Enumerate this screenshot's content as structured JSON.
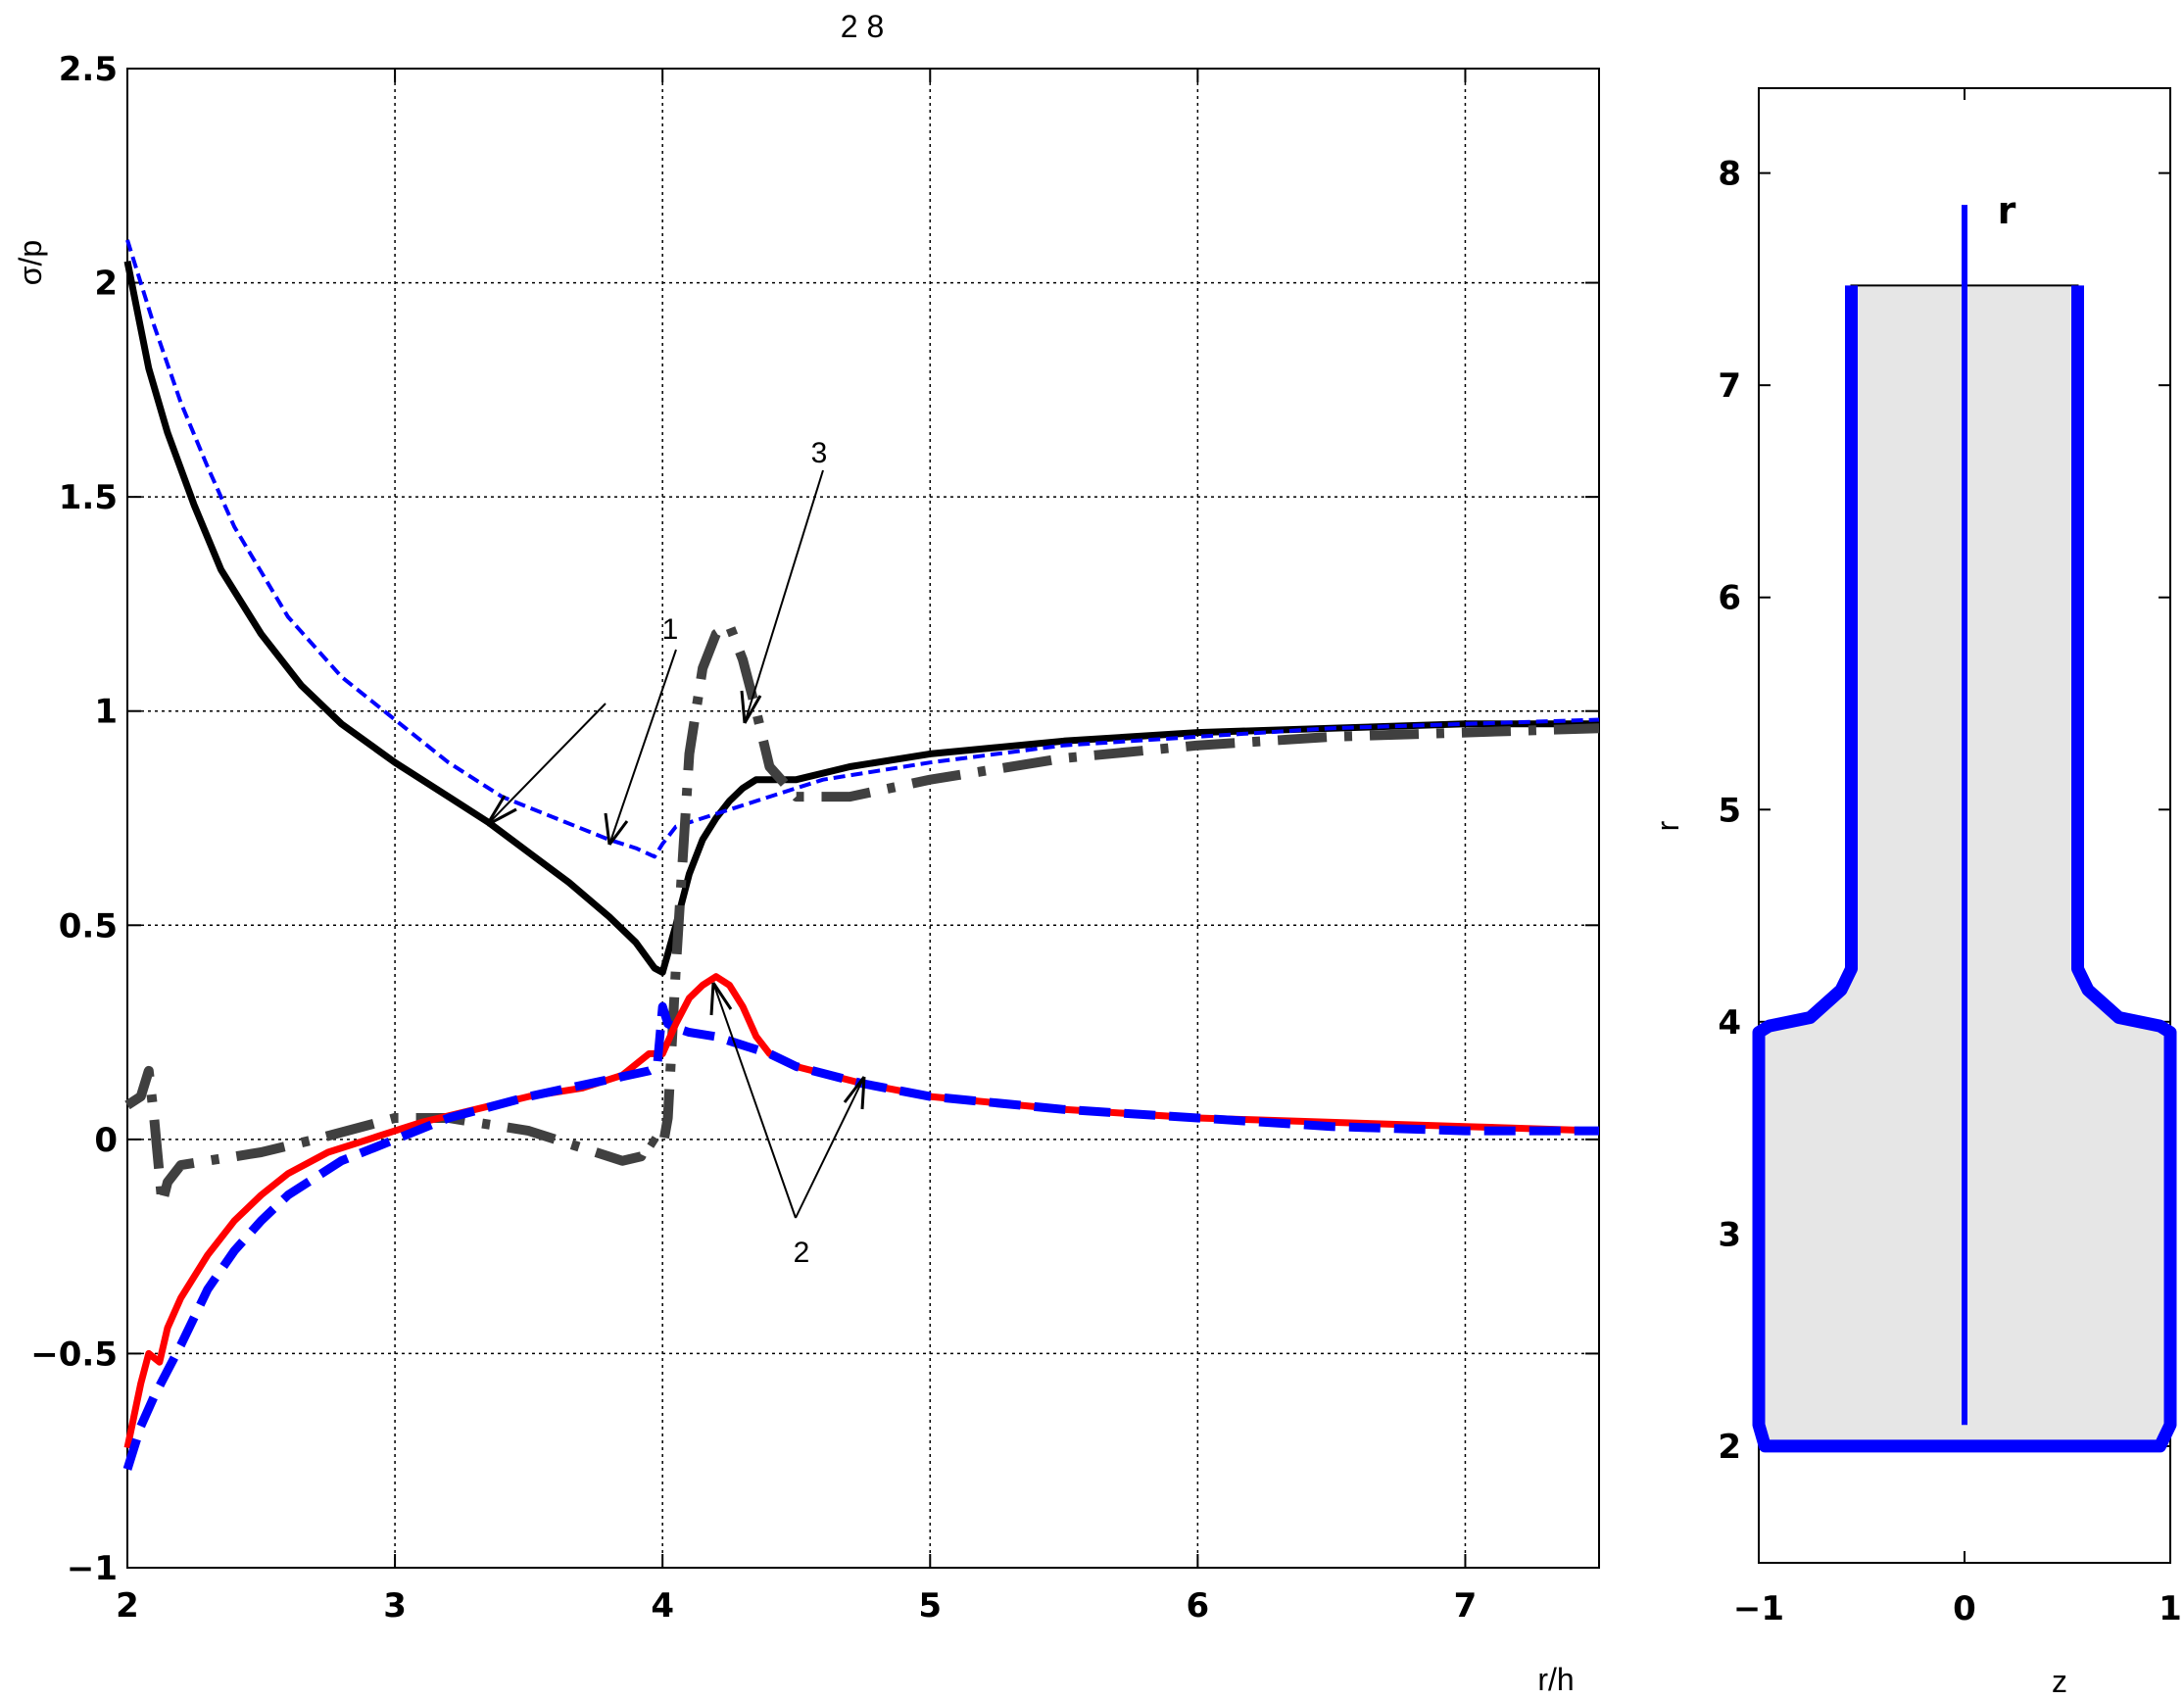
{
  "figure_title": "2 8",
  "chart_data": [
    {
      "type": "line",
      "title": "2 8",
      "xlabel": "r/h",
      "ylabel": "σ/p",
      "xlim": [
        2,
        7.5
      ],
      "ylim": [
        -1,
        2.5
      ],
      "xticks": [
        "2",
        "3",
        "4",
        "5",
        "6",
        "7"
      ],
      "yticks": [
        "−1",
        "−0.5",
        "0",
        "0.5",
        "1",
        "1.5",
        "2",
        "2.5"
      ],
      "grid": true,
      "annotations": [
        "1",
        "2",
        "3"
      ],
      "series": [
        {
          "color": "#000000",
          "style": "solid",
          "x": [
            2.0,
            2.08,
            2.15,
            2.25,
            2.35,
            2.5,
            2.65,
            2.8,
            3.0,
            3.2,
            3.35,
            3.5,
            3.65,
            3.8,
            3.9,
            3.97,
            4.0,
            4.05,
            4.1,
            4.15,
            4.2,
            4.25,
            4.3,
            4.35,
            4.4,
            4.5,
            4.7,
            5.0,
            5.5,
            6.0,
            6.5,
            7.0,
            7.5
          ],
          "y": [
            2.05,
            1.8,
            1.65,
            1.48,
            1.33,
            1.18,
            1.06,
            0.97,
            0.88,
            0.8,
            0.74,
            0.67,
            0.6,
            0.52,
            0.46,
            0.4,
            0.39,
            0.5,
            0.62,
            0.7,
            0.75,
            0.79,
            0.82,
            0.84,
            0.84,
            0.84,
            0.87,
            0.9,
            0.93,
            0.95,
            0.96,
            0.97,
            0.97
          ]
        },
        {
          "color": "#0000ff",
          "style": "dotted",
          "x": [
            2.0,
            2.1,
            2.2,
            2.3,
            2.4,
            2.6,
            2.8,
            3.0,
            3.2,
            3.4,
            3.6,
            3.8,
            3.9,
            3.97,
            4.0,
            4.05,
            4.1,
            4.2,
            4.3,
            4.4,
            4.6,
            5.0,
            5.5,
            6.0,
            6.5,
            7.0,
            7.5
          ],
          "y": [
            2.1,
            1.9,
            1.72,
            1.57,
            1.43,
            1.22,
            1.08,
            0.98,
            0.88,
            0.8,
            0.75,
            0.7,
            0.68,
            0.66,
            0.69,
            0.73,
            0.74,
            0.76,
            0.78,
            0.8,
            0.84,
            0.88,
            0.92,
            0.94,
            0.96,
            0.97,
            0.98
          ]
        },
        {
          "color": "#404040",
          "style": "dash-dot",
          "x": [
            2.0,
            2.05,
            2.08,
            2.1,
            2.13,
            2.15,
            2.2,
            2.3,
            2.5,
            2.7,
            3.0,
            3.2,
            3.5,
            3.7,
            3.85,
            3.92,
            3.95,
            4.0,
            4.02,
            4.05,
            4.1,
            4.15,
            4.2,
            4.25,
            4.3,
            4.35,
            4.4,
            4.5,
            4.7,
            5.0,
            5.5,
            6.0,
            6.5,
            7.0,
            7.5
          ],
          "y": [
            0.08,
            0.1,
            0.16,
            0.05,
            -0.15,
            -0.1,
            -0.06,
            -0.05,
            -0.03,
            0.0,
            0.05,
            0.05,
            0.02,
            -0.02,
            -0.05,
            -0.04,
            0.0,
            -0.02,
            0.05,
            0.4,
            0.9,
            1.1,
            1.18,
            1.2,
            1.12,
            1.0,
            0.87,
            0.8,
            0.8,
            0.84,
            0.89,
            0.92,
            0.94,
            0.95,
            0.96
          ]
        },
        {
          "color": "#ff0000",
          "style": "solid",
          "x": [
            2.0,
            2.05,
            2.08,
            2.12,
            2.15,
            2.2,
            2.3,
            2.4,
            2.5,
            2.6,
            2.75,
            2.9,
            3.0,
            3.1,
            3.3,
            3.5,
            3.7,
            3.85,
            3.95,
            4.0,
            4.05,
            4.1,
            4.15,
            4.2,
            4.25,
            4.3,
            4.35,
            4.4,
            4.5,
            4.75,
            5.0,
            5.5,
            6.0,
            6.5,
            7.0,
            7.5
          ],
          "y": [
            -0.72,
            -0.57,
            -0.5,
            -0.52,
            -0.44,
            -0.37,
            -0.27,
            -0.19,
            -0.13,
            -0.08,
            -0.03,
            0.0,
            0.02,
            0.04,
            0.07,
            0.1,
            0.12,
            0.15,
            0.2,
            0.2,
            0.27,
            0.33,
            0.36,
            0.38,
            0.36,
            0.31,
            0.24,
            0.2,
            0.17,
            0.13,
            0.1,
            0.07,
            0.05,
            0.04,
            0.03,
            0.02
          ]
        },
        {
          "color": "#0000ff",
          "style": "dashed",
          "x": [
            2.0,
            2.05,
            2.1,
            2.2,
            2.3,
            2.4,
            2.5,
            2.6,
            2.8,
            3.0,
            3.2,
            3.5,
            3.8,
            3.95,
            3.98,
            4.0,
            4.02,
            4.05,
            4.1,
            4.2,
            4.3,
            4.4,
            4.5,
            4.75,
            5.0,
            5.5,
            6.0,
            6.5,
            7.0,
            7.5
          ],
          "y": [
            -0.77,
            -0.67,
            -0.6,
            -0.48,
            -0.35,
            -0.26,
            -0.19,
            -0.13,
            -0.05,
            0.0,
            0.05,
            0.1,
            0.14,
            0.16,
            0.17,
            0.31,
            0.27,
            0.26,
            0.25,
            0.24,
            0.22,
            0.2,
            0.17,
            0.13,
            0.1,
            0.07,
            0.05,
            0.03,
            0.02,
            0.02
          ]
        }
      ]
    },
    {
      "type": "line",
      "title": "",
      "xlabel": "z",
      "ylabel": "r",
      "xlim": [
        -1,
        1
      ],
      "ylim": [
        1.45,
        8.4
      ],
      "xticks": [
        "−1",
        "0",
        "1"
      ],
      "yticks": [
        "2",
        "3",
        "4",
        "5",
        "6",
        "7",
        "8"
      ],
      "grid": false,
      "inner_label": "r",
      "series": [
        {
          "color": "#0000ff",
          "style": "solid",
          "name": "",
          "x": [
            -0.55,
            -0.55,
            -0.6,
            -0.75,
            -0.95,
            -1.0,
            -1.0,
            -0.97,
            0.95,
            1.0,
            1.0,
            0.95,
            0.75,
            0.6,
            0.55,
            0.55
          ],
          "y": [
            7.47,
            4.25,
            4.15,
            4.02,
            3.98,
            3.95,
            2.1,
            2.0,
            2.0,
            2.1,
            3.95,
            3.98,
            4.02,
            4.15,
            4.25,
            7.47
          ]
        },
        {
          "color": "#0000ff",
          "style": "solid",
          "name": "",
          "x": [
            0,
            0
          ],
          "y": [
            2.1,
            7.85
          ]
        }
      ]
    }
  ]
}
